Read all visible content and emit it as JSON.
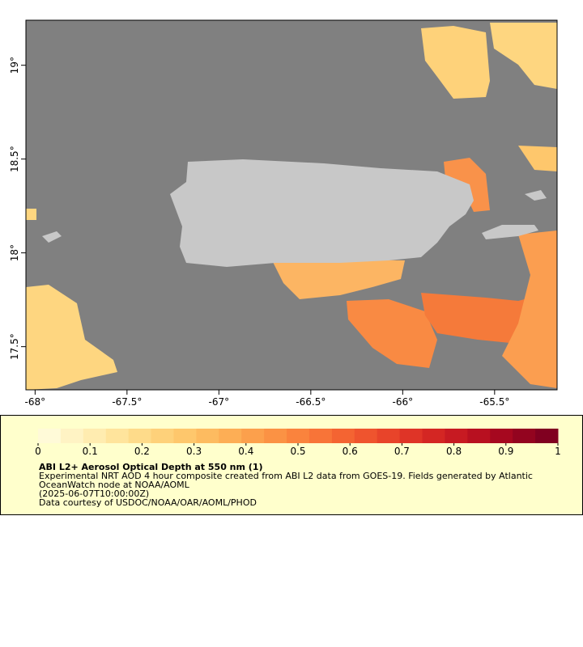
{
  "map": {
    "xlim": [
      -68.05,
      -65.16
    ],
    "ylim": [
      17.27,
      19.24
    ],
    "xticks": [
      {
        "value": -68,
        "label": "-68°"
      },
      {
        "value": -67.5,
        "label": "-67.5°"
      },
      {
        "value": -67,
        "label": "-67°"
      },
      {
        "value": -66.5,
        "label": "-66.5°"
      },
      {
        "value": -66,
        "label": "-66°"
      },
      {
        "value": -65.5,
        "label": "-65.5°"
      }
    ],
    "yticks": [
      {
        "value": 17.5,
        "label": "17.5°"
      },
      {
        "value": 18,
        "label": "18°"
      },
      {
        "value": 18.5,
        "label": "18.5°"
      },
      {
        "value": 19,
        "label": "19°"
      }
    ],
    "colorbar": {
      "clim": [
        0,
        1
      ],
      "ticks": [
        0,
        0.1,
        0.2,
        0.3,
        0.4,
        0.5,
        0.6,
        0.7,
        0.8,
        0.9,
        1
      ],
      "colors": [
        "#fffad8",
        "#fff3c4",
        "#ffecb0",
        "#ffe49c",
        "#fedb8a",
        "#fed17a",
        "#fec76c",
        "#fdbb60",
        "#fdae55",
        "#fca04c",
        "#fb9244",
        "#fa833d",
        "#f87438",
        "#f46432",
        "#ef542e",
        "#e8442a",
        "#df3427",
        "#d42623",
        "#c71a22",
        "#b81020",
        "#a6081f",
        "#93041f",
        "#800020"
      ]
    },
    "title": "ABI L2+ Aerosol Optical Depth at 550 nm (1)",
    "description": [
      "Experimental NRT AOD 4 hour composite created from ABI L2 data from GOES-19. Fields generated by Atlantic",
      "OceanWatch node at NOAA/AOML",
      "(2025-06-07T10:00:00Z)",
      "Data courtesy of USDOC/NOAA/OAR/AOML/PHOD"
    ]
  }
}
